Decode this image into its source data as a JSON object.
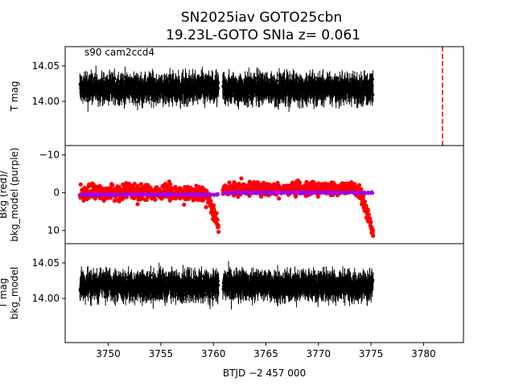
{
  "chart_data": [
    {
      "type": "scatter",
      "title": "SN2025iav  GOTO25cbn",
      "subtitle": "19.23L-GOTO SNIa z= 0.061",
      "ylabel": "T mag",
      "annotation": "s90 cam2ccd4",
      "y_inverted": true,
      "yticks": [
        14.0,
        14.05
      ],
      "ytick_labels": [
        "14.00",
        "14.05"
      ],
      "ylim": [
        14.077,
        13.938
      ],
      "xlim": [
        3745.9,
        3783.8
      ],
      "marker_vline_x": 3781.8,
      "marker_vline_color": "#ff0000",
      "series": [
        {
          "color": "#000000",
          "segments": [
            {
              "x_start": 3747.3,
              "x_end": 3760.5,
              "y_center": 14.018,
              "y_spread": 0.022
            },
            {
              "x_start": 3760.9,
              "x_end": 3775.2,
              "y_center": 14.018,
              "y_spread": 0.022
            }
          ]
        }
      ]
    },
    {
      "type": "scatter",
      "ylabel": "Bkg (red)/\nbkg_model (purple)",
      "yticks": [
        -10,
        0,
        10
      ],
      "ytick_labels": [
        "−10",
        "0",
        "10"
      ],
      "ylim": [
        -12.5,
        13.5
      ],
      "series": [
        {
          "color": "#ff0000",
          "segments": [
            {
              "x_start": 3747.3,
              "x_end": 3760.5,
              "y_center": 0.0,
              "y_spread": 3.5,
              "rise_end_to": 9.0
            },
            {
              "x_start": 3760.9,
              "x_end": 3775.2,
              "y_center": -1.0,
              "y_spread": 3.0,
              "rise_end_to": 10.5
            }
          ]
        },
        {
          "color": "#a000f0",
          "segments": [
            {
              "x_start": 3747.3,
              "x_end": 3760.5,
              "y_center": 0.5,
              "y_spread": 0.6
            },
            {
              "x_start": 3760.9,
              "x_end": 3775.2,
              "y_center": 0.0,
              "y_spread": 0.6
            }
          ]
        }
      ]
    },
    {
      "type": "scatter",
      "ylabel": "T mag\nbkg_model",
      "xlabel": "BTJD −2 457 000",
      "y_inverted": true,
      "yticks": [
        14.0,
        14.05
      ],
      "ytick_labels": [
        "14.00",
        "14.05"
      ],
      "ylim": [
        14.077,
        13.938
      ],
      "xticks": [
        3750,
        3755,
        3760,
        3765,
        3770,
        3775,
        3780
      ],
      "xtick_labels": [
        "3750",
        "3755",
        "3760",
        "3765",
        "3770",
        "3775",
        "3780"
      ],
      "series": [
        {
          "color": "#000000",
          "segments": [
            {
              "x_start": 3747.3,
              "x_end": 3760.5,
              "y_center": 14.018,
              "y_spread": 0.022
            },
            {
              "x_start": 3760.9,
              "x_end": 3775.2,
              "y_center": 14.018,
              "y_spread": 0.022
            }
          ]
        }
      ]
    }
  ]
}
